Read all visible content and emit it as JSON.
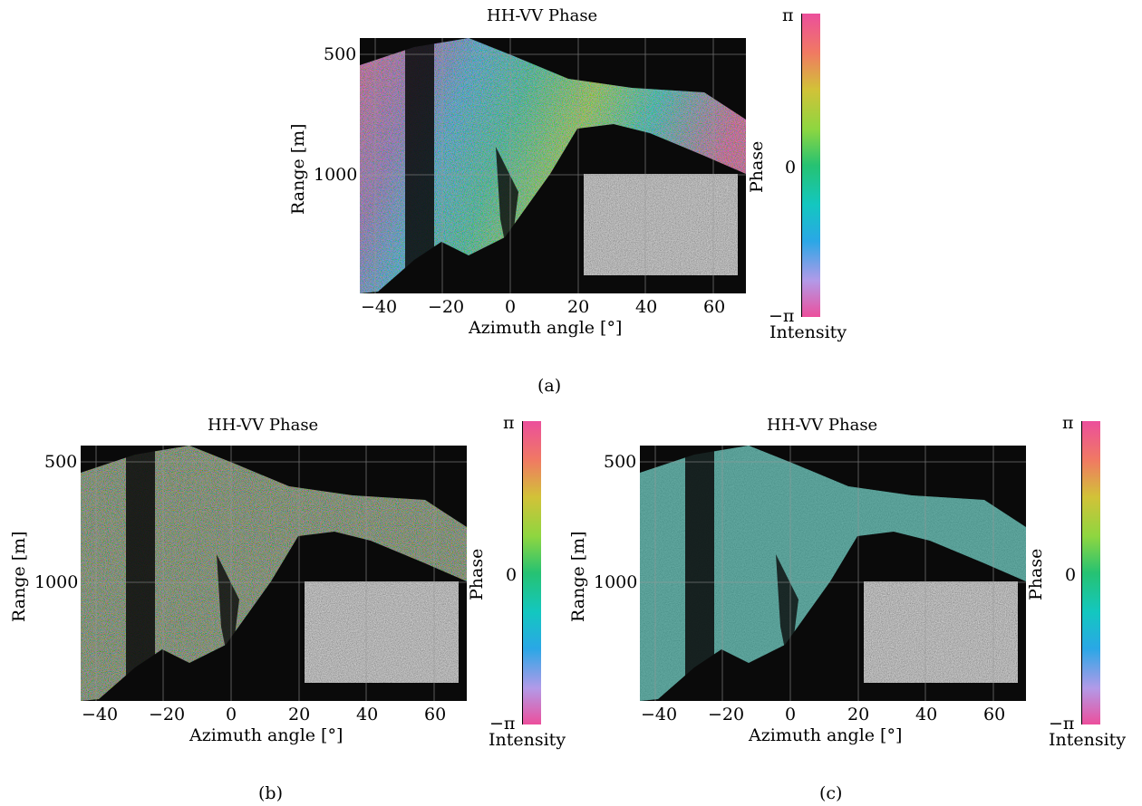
{
  "panels": [
    {
      "id": "a",
      "title": "HH-VV Phase",
      "caption": "(a)",
      "xlabel": "Azimuth angle [°]",
      "ylabel": "Range [m]",
      "xticks": [
        "−40",
        "−20",
        "0",
        "20",
        "40",
        "60"
      ],
      "yticks": [
        "500",
        "1000"
      ],
      "colorbar": {
        "top": "π",
        "mid": "0",
        "bottom": "−π",
        "label": "Phase",
        "sublabel": "Intensity"
      },
      "style": "rainbow"
    },
    {
      "id": "b",
      "title": "HH-VV Phase",
      "caption": "(b)",
      "xlabel": "Azimuth angle [°]",
      "ylabel": "Range [m]",
      "xticks": [
        "−40",
        "−20",
        "0",
        "20",
        "40",
        "60"
      ],
      "yticks": [
        "500",
        "1000"
      ],
      "colorbar": {
        "top": "π",
        "mid": "0",
        "bottom": "−π",
        "label": "Phase",
        "sublabel": "Intensity"
      },
      "style": "mixed"
    },
    {
      "id": "c",
      "title": "HH-VV Phase",
      "caption": "(c)",
      "xlabel": "Azimuth angle [°]",
      "ylabel": "Range [m]",
      "xticks": [
        "−40",
        "−20",
        "0",
        "20",
        "40",
        "60"
      ],
      "yticks": [
        "500",
        "1000"
      ],
      "colorbar": {
        "top": "π",
        "mid": "0",
        "bottom": "−π",
        "label": "Phase",
        "sublabel": "Intensity"
      },
      "style": "cyan"
    }
  ],
  "colors": {
    "background": "#0a0a0a",
    "colorbar_stops": [
      "#ec4f9c",
      "#f07a62",
      "#d2c238",
      "#8ed640",
      "#26c272",
      "#13c7c0",
      "#2aa7e6",
      "#b29ae8",
      "#ec4f9c"
    ]
  }
}
